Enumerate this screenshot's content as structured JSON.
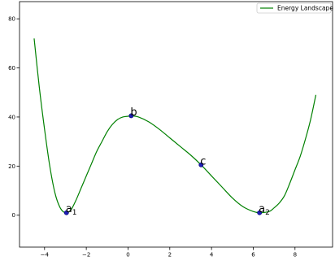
{
  "chart_data": {
    "type": "line",
    "title": "",
    "xlabel": "",
    "ylabel": "",
    "xlim": [
      -5.2,
      9.8
    ],
    "ylim": [
      -13,
      87
    ],
    "x_ticks": [
      -4,
      -2,
      0,
      2,
      4,
      6,
      8
    ],
    "y_ticks": [
      0,
      20,
      40,
      60,
      80
    ],
    "grid": false,
    "legend_position": "top-right",
    "series": [
      {
        "name": "Energy Landscape",
        "color": "#008000",
        "x": [
          -4.5,
          -4.25,
          -4.0,
          -3.75,
          -3.5,
          -3.25,
          -3.0,
          -2.75,
          -2.5,
          -2.25,
          -2.0,
          -1.75,
          -1.5,
          -1.25,
          -1.0,
          -0.75,
          -0.5,
          -0.25,
          0.0,
          0.15,
          0.5,
          1.0,
          1.5,
          2.0,
          2.5,
          3.0,
          3.5,
          4.0,
          4.5,
          5.0,
          5.5,
          6.0,
          6.3,
          6.75,
          7.0,
          7.25,
          7.5,
          7.75,
          8.0,
          8.25,
          8.5,
          8.75,
          9.0
        ],
        "y": [
          72,
          52,
          35,
          20,
          9,
          3,
          1,
          2,
          6,
          11,
          16,
          21,
          26,
          30,
          34,
          37,
          39,
          40,
          40.3,
          40.5,
          40,
          38,
          35,
          31.5,
          28,
          24.5,
          20.5,
          16,
          11.5,
          7,
          3.5,
          1.5,
          1,
          1.5,
          3,
          5,
          8,
          13,
          18.5,
          24,
          31,
          39,
          49
        ]
      }
    ],
    "points": [
      {
        "x": -2.95,
        "y": 1,
        "label": "a",
        "sub": "1"
      },
      {
        "x": 0.15,
        "y": 40.5,
        "label": "b",
        "sub": ""
      },
      {
        "x": 3.5,
        "y": 20.5,
        "label": "c",
        "sub": ""
      },
      {
        "x": 6.3,
        "y": 1,
        "label": "a",
        "sub": "2"
      }
    ]
  }
}
